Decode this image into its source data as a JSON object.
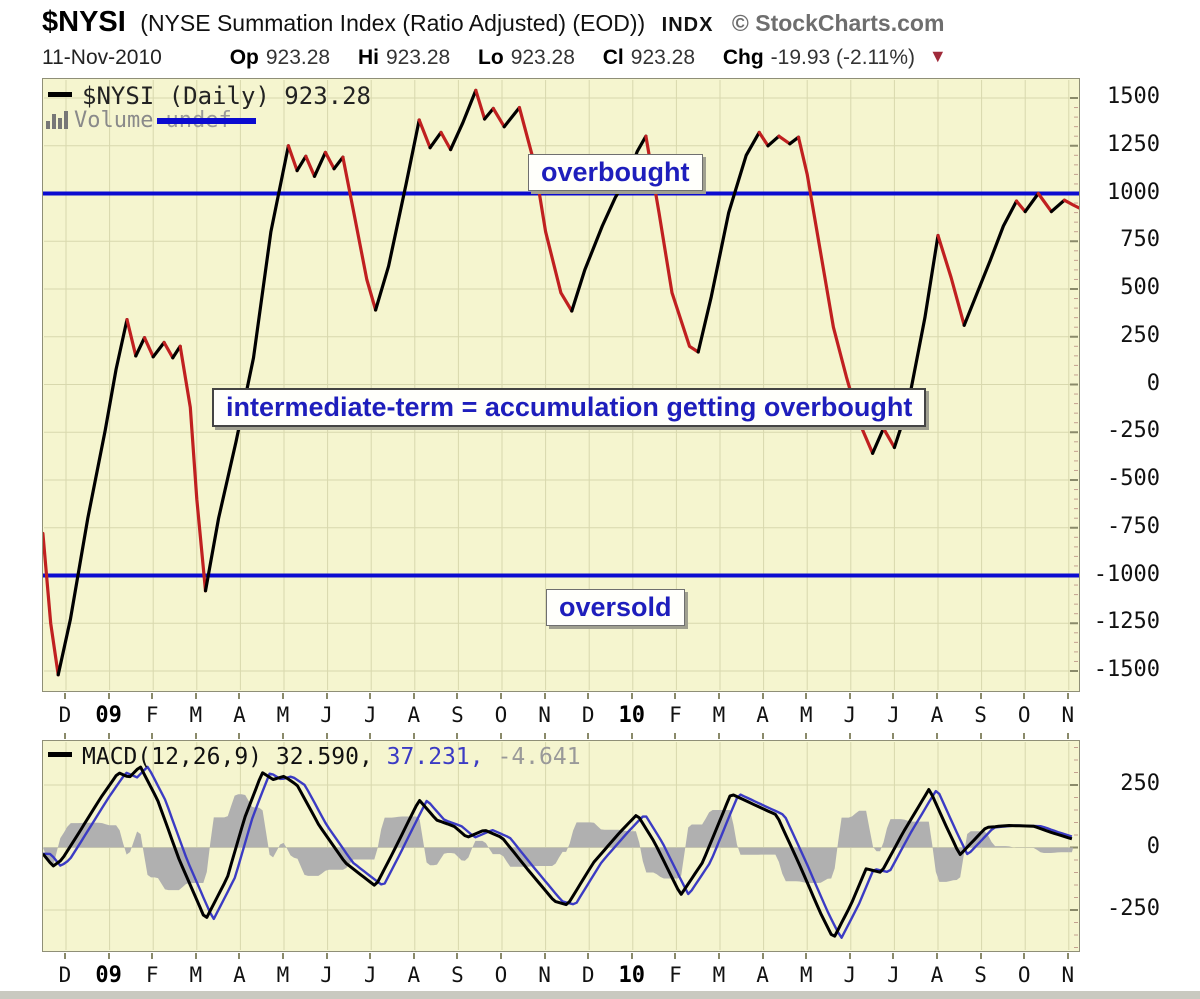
{
  "header": {
    "symbol": "$NYSI",
    "title": "(NYSE Summation Index (Ratio Adjusted) (EOD))",
    "exchange": "INDX",
    "source": "© StockCharts.com",
    "date": "11-Nov-2010",
    "quote": {
      "op_label": "Op",
      "op_value": "923.28",
      "hi_label": "Hi",
      "hi_value": "923.28",
      "lo_label": "Lo",
      "lo_value": "923.28",
      "cl_label": "Cl",
      "cl_value": "923.28",
      "chg_label": "Chg",
      "chg_value": "-19.93 (-2.11%)",
      "direction_icon": "down-triangle"
    }
  },
  "main_panel": {
    "legend_series": "$NYSI (Daily) 923.28",
    "volume_label": "Volume",
    "volume_value": "undef",
    "annotation_overbought": "overbought",
    "annotation_intermediate": "intermediate-term = accumulation getting overbought",
    "annotation_oversold": "oversold"
  },
  "macd_panel": {
    "legend_name": "MACD(12,26,9)",
    "legend_macd_value": "32.590,",
    "legend_signal_value": "37.231,",
    "legend_hist_value": "-4.641"
  },
  "colors": {
    "background": "#f5f5cf",
    "grid": "#d8d8ad",
    "price_up": "#000000",
    "price_down": "#c02020",
    "threshold_blue": "#0b0bd0",
    "annotation_blue": "#1e1ebc",
    "macd_line": "#000000",
    "signal_line": "#3b3bc4",
    "histogram_gray": "#b0b0b0",
    "change_arrow": "#a02a3a"
  },
  "chart_data": [
    {
      "type": "line",
      "title": "$NYSI (Daily)",
      "last_value": 923.28,
      "overbought_level": 1000,
      "oversold_level": -1000,
      "ylim": [
        -1500,
        1500
      ],
      "y_ticks": [
        1500,
        1250,
        1000,
        750,
        500,
        250,
        0,
        -250,
        -500,
        -750,
        -1000,
        -1250,
        -1500
      ],
      "x_labels": [
        "D",
        "09",
        "F",
        "M",
        "A",
        "M",
        "J",
        "J",
        "A",
        "S",
        "O",
        "N",
        "D",
        "10",
        "F",
        "M",
        "A",
        "M",
        "J",
        "J",
        "A",
        "S",
        "O",
        "N"
      ],
      "x_label_bold_indices": [
        1,
        13
      ],
      "grid": true,
      "legend_position": "top-left",
      "series": [
        {
          "name": "$NYSI",
          "style": "up-black-down-red",
          "points": [
            [
              -0.53,
              -780
            ],
            [
              -0.35,
              -1250
            ],
            [
              -0.18,
              -1520
            ],
            [
              0.1,
              -1230
            ],
            [
              0.5,
              -700
            ],
            [
              0.9,
              -240
            ],
            [
              1.15,
              80
            ],
            [
              1.4,
              340
            ],
            [
              1.6,
              150
            ],
            [
              1.8,
              245
            ],
            [
              2.0,
              145
            ],
            [
              2.25,
              220
            ],
            [
              2.45,
              140
            ],
            [
              2.62,
              200
            ],
            [
              2.85,
              -120
            ],
            [
              3.0,
              -600
            ],
            [
              3.2,
              -1080
            ],
            [
              3.5,
              -700
            ],
            [
              3.9,
              -300
            ],
            [
              4.3,
              140
            ],
            [
              4.7,
              800
            ],
            [
              5.1,
              1250
            ],
            [
              5.3,
              1120
            ],
            [
              5.5,
              1195
            ],
            [
              5.7,
              1090
            ],
            [
              5.95,
              1215
            ],
            [
              6.15,
              1130
            ],
            [
              6.35,
              1190
            ],
            [
              6.6,
              900
            ],
            [
              6.9,
              550
            ],
            [
              7.1,
              390
            ],
            [
              7.4,
              620
            ],
            [
              7.8,
              1050
            ],
            [
              8.1,
              1385
            ],
            [
              8.35,
              1240
            ],
            [
              8.6,
              1320
            ],
            [
              8.82,
              1230
            ],
            [
              9.1,
              1370
            ],
            [
              9.4,
              1540
            ],
            [
              9.6,
              1390
            ],
            [
              9.8,
              1445
            ],
            [
              10.05,
              1350
            ],
            [
              10.4,
              1450
            ],
            [
              10.75,
              1150
            ],
            [
              11.0,
              800
            ],
            [
              11.35,
              480
            ],
            [
              11.6,
              385
            ],
            [
              11.9,
              600
            ],
            [
              12.3,
              830
            ],
            [
              12.6,
              980
            ],
            [
              12.9,
              1090
            ],
            [
              13.1,
              1220
            ],
            [
              13.3,
              1300
            ],
            [
              13.6,
              900
            ],
            [
              13.9,
              480
            ],
            [
              14.3,
              200
            ],
            [
              14.5,
              170
            ],
            [
              14.8,
              460
            ],
            [
              15.2,
              900
            ],
            [
              15.6,
              1200
            ],
            [
              15.9,
              1320
            ],
            [
              16.1,
              1250
            ],
            [
              16.35,
              1300
            ],
            [
              16.6,
              1260
            ],
            [
              16.8,
              1295
            ],
            [
              17.0,
              1100
            ],
            [
              17.3,
              700
            ],
            [
              17.6,
              300
            ],
            [
              17.9,
              40
            ],
            [
              18.2,
              -200
            ],
            [
              18.5,
              -360
            ],
            [
              18.75,
              -230
            ],
            [
              19.0,
              -330
            ],
            [
              19.3,
              -120
            ],
            [
              19.7,
              350
            ],
            [
              20.0,
              780
            ],
            [
              20.3,
              560
            ],
            [
              20.6,
              310
            ],
            [
              20.9,
              480
            ],
            [
              21.2,
              650
            ],
            [
              21.5,
              830
            ],
            [
              21.8,
              960
            ],
            [
              22.0,
              905
            ],
            [
              22.3,
              1000
            ],
            [
              22.6,
              905
            ],
            [
              22.9,
              965
            ],
            [
              23.1,
              940
            ],
            [
              23.25,
              923
            ]
          ]
        }
      ]
    },
    {
      "type": "line",
      "title": "MACD(12,26,9)",
      "values": {
        "macd": 32.59,
        "signal": 37.231,
        "histogram": -4.641
      },
      "ylim": [
        -420,
        425
      ],
      "y_ticks": [
        250,
        0,
        -250
      ],
      "x_labels": [
        "D",
        "09",
        "F",
        "M",
        "A",
        "M",
        "J",
        "J",
        "A",
        "S",
        "O",
        "N",
        "D",
        "10",
        "F",
        "M",
        "A",
        "M",
        "J",
        "J",
        "A",
        "S",
        "O",
        "N"
      ],
      "x_label_bold_indices": [
        1,
        13
      ],
      "grid": true,
      "series": [
        {
          "name": "MACD",
          "points": [
            [
              -0.53,
              -25
            ],
            [
              -0.3,
              -75
            ],
            [
              -0.1,
              -50
            ],
            [
              0.3,
              60
            ],
            [
              0.8,
              200
            ],
            [
              1.2,
              300
            ],
            [
              1.45,
              280
            ],
            [
              1.7,
              325
            ],
            [
              2.1,
              190
            ],
            [
              2.6,
              -50
            ],
            [
              3.2,
              -290
            ],
            [
              3.7,
              -120
            ],
            [
              4.1,
              120
            ],
            [
              4.5,
              300
            ],
            [
              4.75,
              272
            ],
            [
              5.0,
              285
            ],
            [
              5.3,
              250
            ],
            [
              5.8,
              90
            ],
            [
              6.4,
              -60
            ],
            [
              7.1,
              -155
            ],
            [
              7.5,
              -20
            ],
            [
              8.1,
              190
            ],
            [
              8.5,
              110
            ],
            [
              8.9,
              85
            ],
            [
              9.2,
              40
            ],
            [
              9.6,
              70
            ],
            [
              10.0,
              40
            ],
            [
              10.6,
              -90
            ],
            [
              11.2,
              -215
            ],
            [
              11.5,
              -230
            ],
            [
              12.1,
              -60
            ],
            [
              12.7,
              60
            ],
            [
              13.1,
              133
            ],
            [
              13.5,
              20
            ],
            [
              14.1,
              -190
            ],
            [
              14.6,
              -60
            ],
            [
              15.25,
              215
            ],
            [
              15.8,
              170
            ],
            [
              16.3,
              130
            ],
            [
              16.8,
              -60
            ],
            [
              17.3,
              -260
            ],
            [
              17.6,
              -365
            ],
            [
              18.0,
              -230
            ],
            [
              18.35,
              -85
            ],
            [
              18.7,
              -100
            ],
            [
              19.2,
              60
            ],
            [
              19.8,
              235
            ],
            [
              20.2,
              80
            ],
            [
              20.5,
              -30
            ],
            [
              21.1,
              80
            ],
            [
              21.6,
              88
            ],
            [
              22.2,
              85
            ],
            [
              22.6,
              60
            ],
            [
              23.1,
              33
            ]
          ]
        },
        {
          "name": "MACD signal",
          "derived_lag_months": 0.18
        },
        {
          "name": "MACD histogram",
          "derived": "macd_minus_signal",
          "display_scale": 2
        }
      ]
    }
  ]
}
